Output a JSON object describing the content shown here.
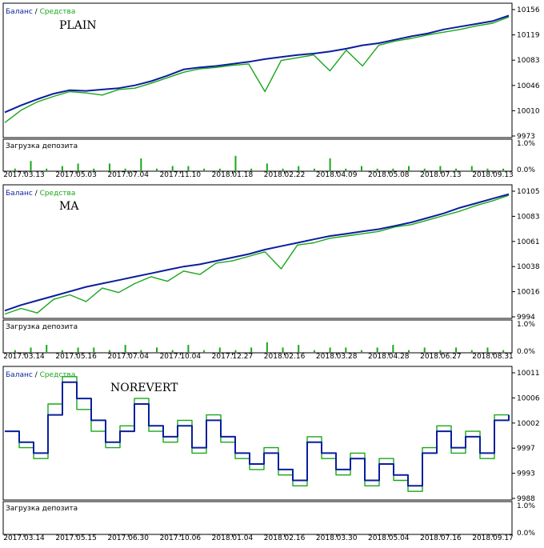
{
  "colors": {
    "balance": "#0a1e9c",
    "equity": "#1aa61a",
    "frame": "#000000",
    "background": "#ffffff"
  },
  "legend": {
    "balance": "Баланс",
    "sep": "/",
    "equity": "Средства"
  },
  "deposit_label": "Загрузка депозита",
  "deposit_ticks": [
    "1.0%",
    "0.0%"
  ],
  "chart_data": [
    {
      "type": "line",
      "title": "PLAIN",
      "y_ticks": [
        "10156",
        "10119",
        "10083",
        "10046",
        "10010",
        "9973"
      ],
      "ylim": [
        9973,
        10156
      ],
      "x_labels": [
        "2017.03.13",
        "2017.05.03",
        "2017.07.04",
        "2017.11.10",
        "2018.01.18",
        "2018.02.22",
        "2018.04.09",
        "2018.05.08",
        "2018.07.13",
        "2018.09.13"
      ],
      "series": [
        {
          "name": "Баланс",
          "values": [
            10005,
            10015,
            10024,
            10032,
            10037,
            10036,
            10038,
            10040,
            10044,
            10050,
            10058,
            10067,
            10070,
            10072,
            10075,
            10078,
            10082,
            10085,
            10088,
            10090,
            10093,
            10097,
            10102,
            10105,
            10110,
            10115,
            10119,
            10125,
            10129,
            10133,
            10137,
            10145
          ]
        },
        {
          "name": "Средства",
          "values": [
            9990,
            10008,
            10020,
            10028,
            10035,
            10033,
            10030,
            10038,
            10040,
            10047,
            10055,
            10063,
            10068,
            10070,
            10073,
            10075,
            10035,
            10080,
            10084,
            10088,
            10065,
            10095,
            10072,
            10102,
            10108,
            10112,
            10117,
            10121,
            10125,
            10130,
            10134,
            10143
          ]
        }
      ],
      "deposit_load": [
        0.1,
        0.4,
        0.1,
        0.2,
        0.3,
        0.1,
        0.3,
        0.1,
        0.5,
        0.1,
        0.2,
        0.2,
        0.1,
        0.1,
        0.6,
        0.1,
        0.3,
        0.1,
        0.2,
        0.1,
        0.5,
        0.1,
        0.2,
        0.1,
        0.1,
        0.2,
        0.1,
        0.2,
        0.1,
        0.2,
        0.1,
        0.1
      ]
    },
    {
      "type": "line",
      "title": "MA",
      "y_ticks": [
        "10105",
        "10083",
        "10061",
        "10038",
        "10016",
        "9994"
      ],
      "ylim": [
        9994,
        10105
      ],
      "x_labels": [
        "2017.03.14",
        "2017.05.16",
        "2017.07.04",
        "2017.10.04",
        "2017.12.27",
        "2018.02.16",
        "2018.03.28",
        "2018.04.28",
        "2018.06.27",
        "2018.08.31"
      ],
      "series": [
        {
          "name": "Баланс",
          "values": [
            9998,
            10003,
            10007,
            10011,
            10015,
            10019,
            10022,
            10025,
            10028,
            10031,
            10034,
            10037,
            10039,
            10042,
            10045,
            10048,
            10052,
            10055,
            10058,
            10061,
            10064,
            10066,
            10068,
            10070,
            10073,
            10076,
            10080,
            10084,
            10089,
            10093,
            10097,
            10101
          ]
        },
        {
          "name": "Средства",
          "values": [
            9995,
            10000,
            9996,
            10008,
            10012,
            10006,
            10018,
            10014,
            10022,
            10028,
            10024,
            10033,
            10030,
            10040,
            10042,
            10046,
            10050,
            10035,
            10056,
            10058,
            10062,
            10064,
            10066,
            10068,
            10072,
            10074,
            10078,
            10082,
            10086,
            10091,
            10095,
            10100
          ]
        }
      ],
      "deposit_load": [
        0.1,
        0.2,
        0.3,
        0.1,
        0.2,
        0.2,
        0.1,
        0.3,
        0.1,
        0.2,
        0.1,
        0.3,
        0.1,
        0.2,
        0.1,
        0.2,
        0.4,
        0.2,
        0.3,
        0.1,
        0.2,
        0.2,
        0.1,
        0.2,
        0.3,
        0.1,
        0.2,
        0.1,
        0.2,
        0.1,
        0.2,
        0.1
      ]
    },
    {
      "type": "line",
      "title": "NOREVERT",
      "y_ticks": [
        "10011",
        "10006",
        "10002",
        "9997",
        "9993",
        "9988"
      ],
      "ylim": [
        9988,
        10011
      ],
      "x_labels": [
        "2017.03.14",
        "2017.05.15",
        "2017.06.30",
        "2017.10.06",
        "2018.01.04",
        "2018.02.16",
        "2018.03.30",
        "2018.05.04",
        "2018.07.16",
        "2018.09.17"
      ],
      "series": [
        {
          "name": "Баланс",
          "values": [
            10000,
            9998,
            9996,
            10003,
            10009,
            10006,
            10002,
            9998,
            10000,
            10005,
            10001,
            9999,
            10001,
            9997,
            10002,
            9999,
            9996,
            9994,
            9996,
            9993,
            9991,
            9998,
            9996,
            9993,
            9995,
            9991,
            9994,
            9992,
            9990,
            9996,
            10000,
            9997,
            9999,
            9996,
            10002,
            10003
          ]
        },
        {
          "name": "Средства",
          "values": [
            10000,
            9997,
            9995,
            10005,
            10010,
            10004,
            10000,
            9997,
            10001,
            10006,
            10000,
            9998,
            10002,
            9996,
            10003,
            9998,
            9995,
            9993,
            9997,
            9992,
            9990,
            9999,
            9995,
            9992,
            9996,
            9990,
            9995,
            9991,
            9989,
            9997,
            10001,
            9996,
            10000,
            9995,
            10003,
            10003
          ]
        }
      ],
      "deposit_load": []
    }
  ]
}
